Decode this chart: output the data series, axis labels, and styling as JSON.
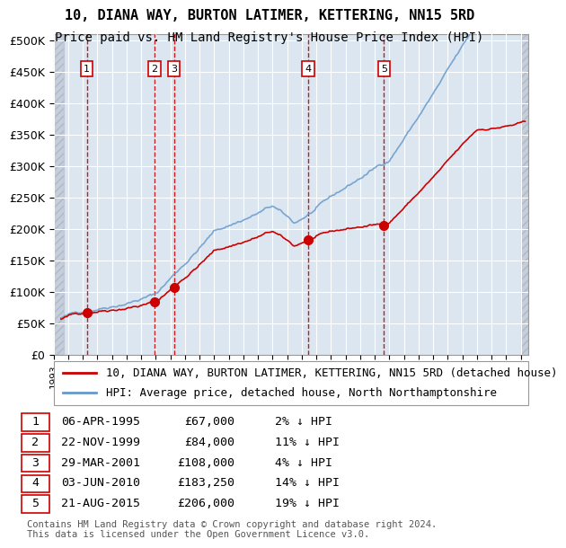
{
  "title": "10, DIANA WAY, BURTON LATIMER, KETTERING, NN15 5RD",
  "subtitle": "Price paid vs. HM Land Registry's House Price Index (HPI)",
  "ylabel_ticks": [
    "£0",
    "£50K",
    "£100K",
    "£150K",
    "£200K",
    "£250K",
    "£300K",
    "£350K",
    "£400K",
    "£450K",
    "£500K"
  ],
  "ytick_values": [
    0,
    50000,
    100000,
    150000,
    200000,
    250000,
    300000,
    350000,
    400000,
    450000,
    500000
  ],
  "ylim": [
    0,
    510000
  ],
  "xlim_start": 1993.0,
  "xlim_end": 2025.5,
  "transactions": [
    {
      "num": 1,
      "date": "06-APR-1995",
      "year": 1995.27,
      "price": 67000,
      "pct": "2%",
      "dir": "↓"
    },
    {
      "num": 2,
      "date": "22-NOV-1999",
      "year": 1999.89,
      "price": 84000,
      "pct": "11%",
      "dir": "↓"
    },
    {
      "num": 3,
      "date": "29-MAR-2001",
      "year": 2001.24,
      "price": 108000,
      "pct": "4%",
      "dir": "↓"
    },
    {
      "num": 4,
      "date": "03-JUN-2010",
      "year": 2010.42,
      "price": 183250,
      "pct": "14%",
      "dir": "↓"
    },
    {
      "num": 5,
      "date": "21-AUG-2015",
      "year": 2015.63,
      "price": 206000,
      "pct": "19%",
      "dir": "↓"
    }
  ],
  "legend_property_label": "10, DIANA WAY, BURTON LATIMER, KETTERING, NN15 5RD (detached house)",
  "legend_hpi_label": "HPI: Average price, detached house, North Northamptonshire",
  "footer": "Contains HM Land Registry data © Crown copyright and database right 2024.\nThis data is licensed under the Open Government Licence v3.0.",
  "property_line_color": "#cc0000",
  "hpi_line_color": "#6699cc",
  "vline_color": "#cc0000",
  "marker_color": "#cc0000",
  "box_edge_color": "#cc0000",
  "background_color": "#dce6f0",
  "hatch_color": "#b0b8c8",
  "grid_color": "#ffffff",
  "title_fontsize": 11,
  "subtitle_fontsize": 10,
  "tick_fontsize": 9,
  "legend_fontsize": 9,
  "table_fontsize": 9.5,
  "footer_fontsize": 7.5
}
